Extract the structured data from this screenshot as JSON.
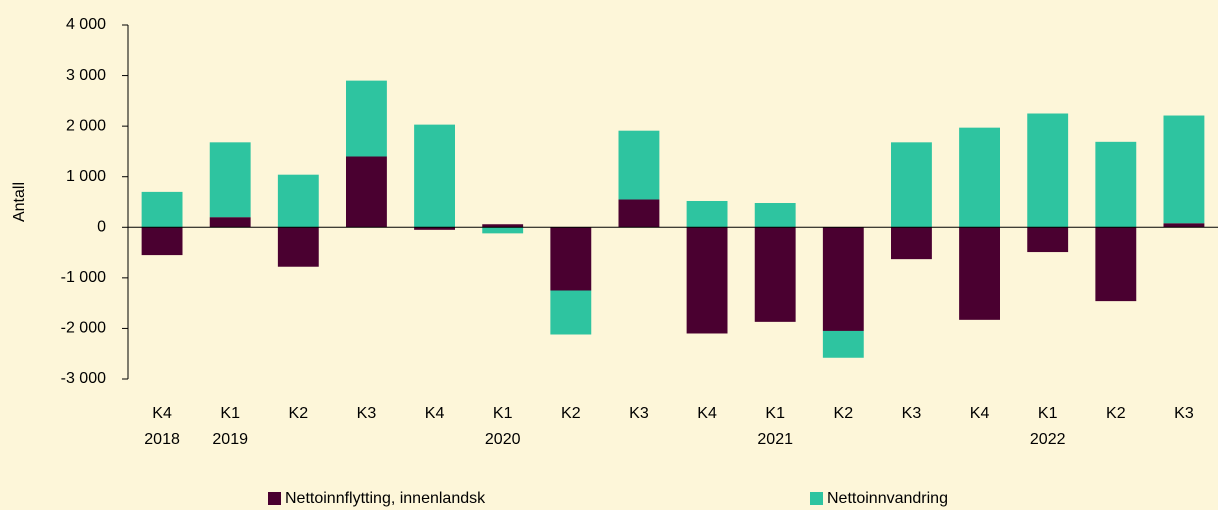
{
  "chart_data": {
    "type": "bar",
    "stacked": true,
    "y_label": "Antall",
    "categories": [
      "K4",
      "K1",
      "K2",
      "K3",
      "K4",
      "K1",
      "K2",
      "K3",
      "K4",
      "K1",
      "K2",
      "K3",
      "K4",
      "K1",
      "K2",
      "K3"
    ],
    "years": [
      "2018",
      "2019",
      null,
      null,
      null,
      "2020",
      null,
      null,
      null,
      "2021",
      null,
      null,
      null,
      "2022",
      null,
      null
    ],
    "series": [
      {
        "name": "Nettoinnflytting, innenlandsk",
        "color": "#4a0030",
        "values": [
          -550,
          200,
          -780,
          1400,
          -50,
          60,
          -1250,
          550,
          -2100,
          -1870,
          -2050,
          -630,
          -1830,
          -490,
          -1460,
          80
        ]
      },
      {
        "name": "Nettoinnvandring",
        "color": "#2ec4a0",
        "values": [
          700,
          1480,
          1040,
          1500,
          2030,
          -120,
          -870,
          1360,
          520,
          480,
          -530,
          1680,
          1970,
          2250,
          1690,
          2130
        ]
      }
    ],
    "ylim": [
      -3000,
      4000
    ],
    "yticks": [
      {
        "value": -3000,
        "label": "-3 000"
      },
      {
        "value": -2000,
        "label": "-2 000"
      },
      {
        "value": -1000,
        "label": "-1 000"
      },
      0,
      {
        "value": 1000,
        "label": "1 000"
      },
      {
        "value": 2000,
        "label": "2 000"
      },
      {
        "value": 3000,
        "label": "3 000"
      },
      {
        "value": 4000,
        "label": "4 000"
      }
    ],
    "grid": false
  }
}
